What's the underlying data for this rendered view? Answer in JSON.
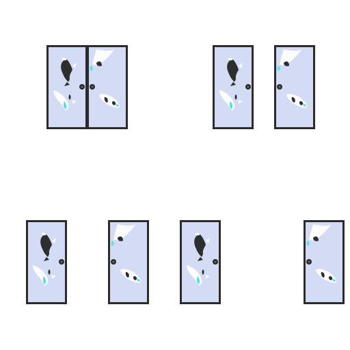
{
  "sheet": {
    "description_visible_text": "",
    "colors": {
      "background": "#ffffff",
      "frame": "#2b2b2b",
      "panel": "#d3dbf5",
      "koi_dark": "#2e2e2e",
      "koi_light": "#ffffff",
      "accent_cyan": "#4fe0e0",
      "handle": "#2b2b2b"
    }
  },
  "sprites": [
    {
      "id": "double-door-closed-left-panel",
      "variant": "left"
    },
    {
      "id": "double-door-closed-right-panel",
      "variant": "right"
    },
    {
      "id": "split-door-left-panel",
      "variant": "left"
    },
    {
      "id": "split-door-right-panel",
      "variant": "right"
    },
    {
      "id": "single-door-left-a",
      "variant": "left"
    },
    {
      "id": "single-door-right-a",
      "variant": "right"
    },
    {
      "id": "single-door-left-b",
      "variant": "left"
    },
    {
      "id": "single-door-right-b",
      "variant": "right"
    }
  ]
}
